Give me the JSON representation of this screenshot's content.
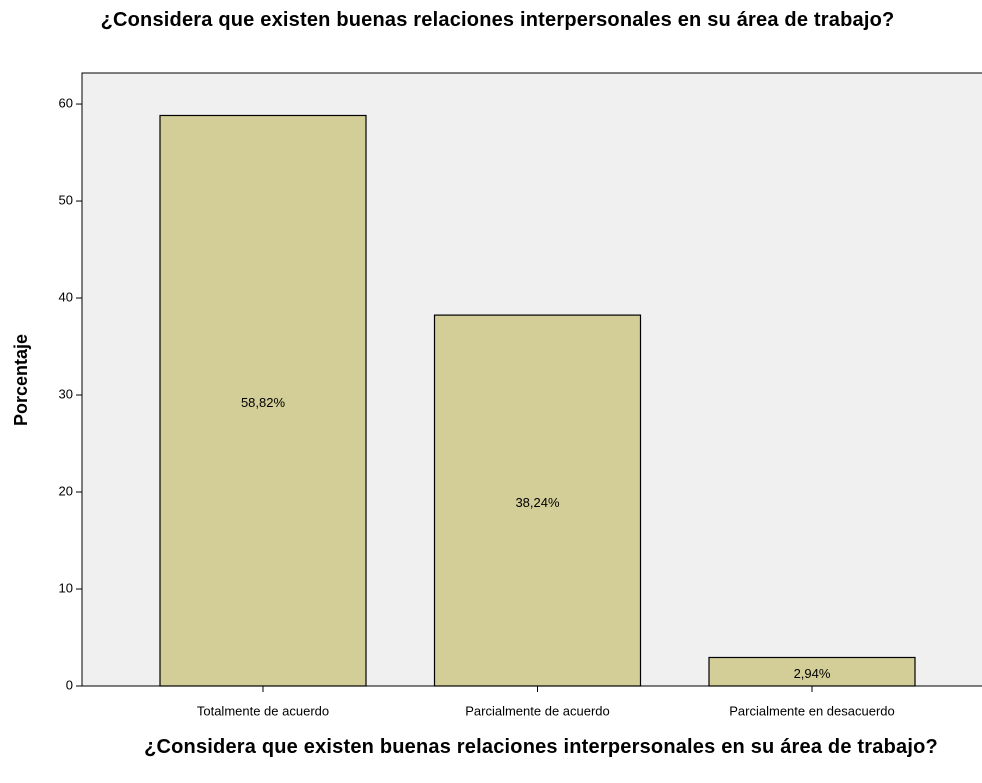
{
  "chart_data": {
    "type": "bar",
    "title": "¿Considera que existen buenas relaciones interpersonales en su área de trabajo?",
    "x_label": "¿Considera que existen buenas relaciones interpersonales en su área de trabajo?",
    "y_label": "Porcentaje",
    "categories": [
      "Totalmente de acuerdo",
      "Parcialmente de acuerdo",
      "Parcialmente en desacuerdo"
    ],
    "values": [
      58.82,
      38.24,
      2.94
    ],
    "value_labels": [
      "58,82%",
      "38,24%",
      "2,94%"
    ],
    "color": "#d3ce97",
    "ylim": [
      0,
      63.2
    ],
    "yticks": [
      0,
      10,
      20,
      30,
      40,
      50,
      60
    ],
    "grid": false
  }
}
